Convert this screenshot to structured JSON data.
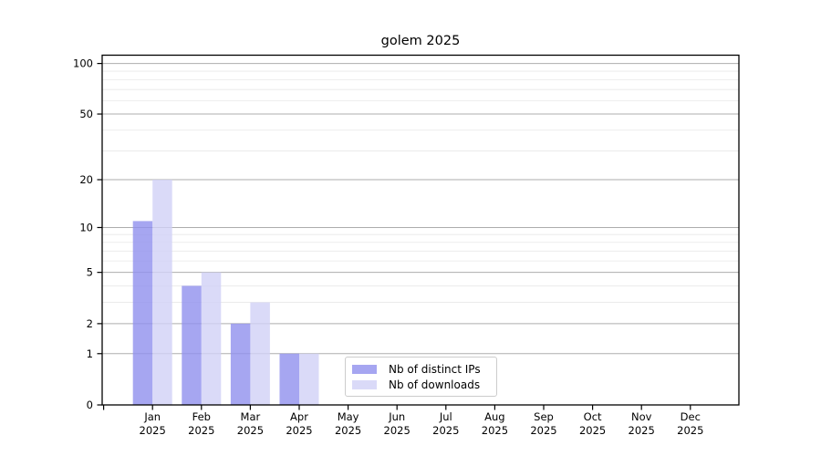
{
  "chart_data": {
    "type": "bar",
    "title": "golem 2025",
    "categories": [
      "Jan 2025",
      "Feb 2025",
      "Mar 2025",
      "Apr 2025",
      "May 2025",
      "Jun 2025",
      "Jul 2025",
      "Aug 2025",
      "Sep 2025",
      "Oct 2025",
      "Nov 2025",
      "Dec 2025"
    ],
    "x_tick_months": [
      "Jan",
      "Feb",
      "Mar",
      "Apr",
      "May",
      "Jun",
      "Jul",
      "Aug",
      "Sep",
      "Oct",
      "Nov",
      "Dec"
    ],
    "x_tick_year": "2025",
    "series": [
      {
        "name": "Nb of distinct IPs",
        "color": "#9090ee",
        "opacity": 0.8,
        "values": [
          11,
          4,
          2,
          1,
          0,
          0,
          0,
          0,
          0,
          0,
          0,
          0
        ]
      },
      {
        "name": "Nb of downloads",
        "color": "#d1d1f6",
        "opacity": 0.8,
        "values": [
          20,
          5,
          3,
          1,
          0,
          0,
          0,
          0,
          0,
          0,
          0,
          0
        ]
      }
    ],
    "xlabel": "",
    "ylabel": "",
    "yscale": "log1p",
    "ylim": [
      0,
      112
    ],
    "y_major_ticks": [
      0,
      1,
      2,
      5,
      10,
      20,
      50,
      100
    ],
    "y_minor_ticks": [
      3,
      4,
      6,
      7,
      8,
      9,
      30,
      40,
      60,
      70,
      80,
      90
    ],
    "grid": "horizontal",
    "legend_position": "lower center"
  },
  "colors": {
    "major_grid": "#adadad",
    "minor_grid": "#e8e8e8",
    "axis": "#000000",
    "legend_border": "#cccccc",
    "background": "#ffffff"
  }
}
